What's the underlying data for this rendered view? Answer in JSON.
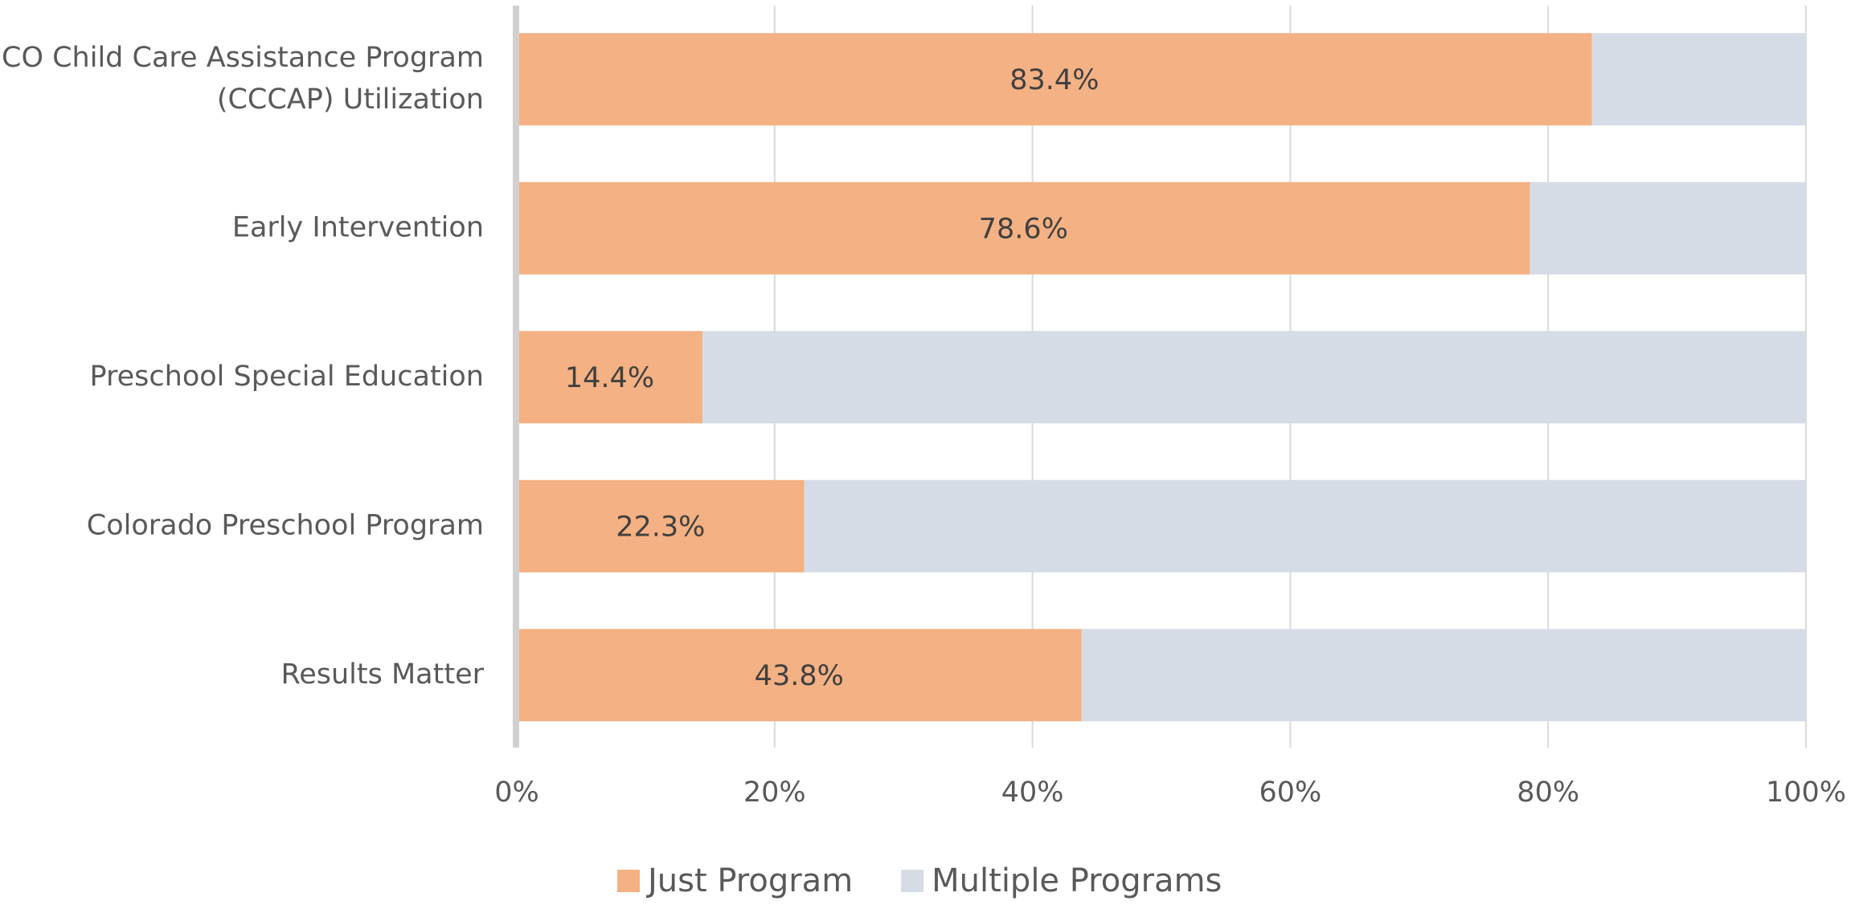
{
  "chart_data": {
    "type": "stacked_barh",
    "categories": [
      [
        "CO Child Care Assistance Program",
        "(CCCAP) Utilization"
      ],
      "Early Intervention",
      "Preschool Special Education",
      "Colorado Preschool Program",
      "Results Matter"
    ],
    "series": [
      {
        "name": "Just Program",
        "color": "#f4b183",
        "values": [
          83.4,
          78.6,
          14.4,
          22.3,
          43.8
        ],
        "value_labels": [
          "83.4%",
          "78.6%",
          "14.4%",
          "22.3%",
          "43.8%"
        ]
      },
      {
        "name": "Multiple Programs",
        "color": "#d6dce5",
        "values": [
          16.6,
          21.4,
          85.6,
          77.7,
          56.2
        ]
      }
    ],
    "xlim": [
      0,
      100
    ],
    "xticks": [
      {
        "value": 0,
        "label": "0%"
      },
      {
        "value": 20,
        "label": "20%"
      },
      {
        "value": 40,
        "label": "40%"
      },
      {
        "value": 60,
        "label": "60%"
      },
      {
        "value": 80,
        "label": "80%"
      },
      {
        "value": 100,
        "label": "100%"
      }
    ],
    "grid": true,
    "legend": "bottom"
  }
}
